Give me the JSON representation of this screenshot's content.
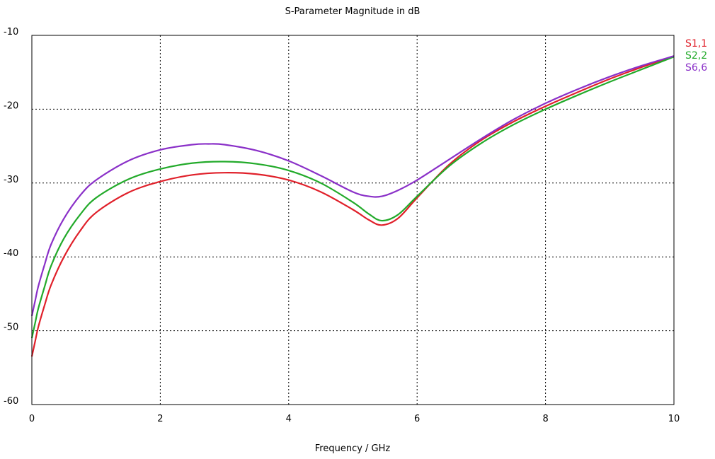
{
  "chart_data": {
    "type": "line",
    "title": "S-Parameter Magnitude in dB",
    "xlabel": "Frequency / GHz",
    "ylabel": "",
    "xlim": [
      0,
      10
    ],
    "ylim": [
      -60,
      -10
    ],
    "xticks": [
      0,
      2,
      4,
      6,
      8,
      10
    ],
    "yticks": [
      -60,
      -50,
      -40,
      -30,
      -20,
      -10
    ],
    "xtick_labels": [
      "0",
      "2",
      "4",
      "6",
      "8",
      "10"
    ],
    "ytick_labels": [
      "-60",
      "-50",
      "-40",
      "-30",
      "-20",
      "-10"
    ],
    "grid": true,
    "legend_position": "top-right, outside plot",
    "series": [
      {
        "name": "S1,1",
        "color": "#e0202a",
        "x": [
          0,
          0.05,
          0.1,
          0.2,
          0.3,
          0.5,
          0.75,
          1.0,
          1.5,
          2.0,
          2.5,
          3.0,
          3.5,
          4.0,
          4.5,
          5.0,
          5.25,
          5.45,
          5.7,
          6.0,
          6.5,
          7.0,
          7.5,
          8.0,
          8.5,
          9.0,
          9.5,
          10.0
        ],
        "y": [
          -53.5,
          -51.5,
          -49.5,
          -46.5,
          -43.8,
          -40.0,
          -36.5,
          -34.0,
          -31.3,
          -29.8,
          -28.9,
          -28.6,
          -28.8,
          -29.6,
          -31.2,
          -33.6,
          -35.0,
          -35.7,
          -34.8,
          -32.0,
          -27.5,
          -24.2,
          -21.7,
          -19.6,
          -17.7,
          -15.9,
          -14.3,
          -12.8
        ]
      },
      {
        "name": "S2,2",
        "color": "#22aa2a",
        "x": [
          0,
          0.05,
          0.1,
          0.2,
          0.3,
          0.5,
          0.75,
          1.0,
          1.5,
          2.0,
          2.5,
          3.0,
          3.5,
          4.0,
          4.5,
          5.0,
          5.25,
          5.45,
          5.7,
          6.0,
          6.5,
          7.0,
          7.5,
          8.0,
          8.5,
          9.0,
          9.5,
          10.0
        ],
        "y": [
          -51.0,
          -49.0,
          -47.0,
          -44.0,
          -41.2,
          -37.5,
          -34.3,
          -32.0,
          -29.5,
          -28.1,
          -27.3,
          -27.1,
          -27.4,
          -28.3,
          -30.0,
          -32.6,
          -34.2,
          -35.1,
          -34.3,
          -31.8,
          -27.7,
          -24.6,
          -22.1,
          -20.0,
          -18.1,
          -16.3,
          -14.6,
          -12.9
        ]
      },
      {
        "name": "S6,6",
        "color": "#8a30c8",
        "x": [
          0,
          0.05,
          0.1,
          0.2,
          0.3,
          0.5,
          0.75,
          1.0,
          1.5,
          2.0,
          2.5,
          2.75,
          3.0,
          3.5,
          4.0,
          4.5,
          5.0,
          5.25,
          5.45,
          5.7,
          6.0,
          6.5,
          7.0,
          7.5,
          8.0,
          8.5,
          9.0,
          9.5,
          10.0
        ],
        "y": [
          -48.0,
          -46.0,
          -44.0,
          -41.0,
          -38.3,
          -34.8,
          -31.7,
          -29.6,
          -27.0,
          -25.5,
          -24.8,
          -24.7,
          -24.8,
          -25.6,
          -27.0,
          -29.0,
          -31.2,
          -31.8,
          -31.8,
          -31.0,
          -29.6,
          -26.8,
          -24.0,
          -21.4,
          -19.2,
          -17.3,
          -15.6,
          -14.1,
          -12.8
        ]
      }
    ]
  }
}
